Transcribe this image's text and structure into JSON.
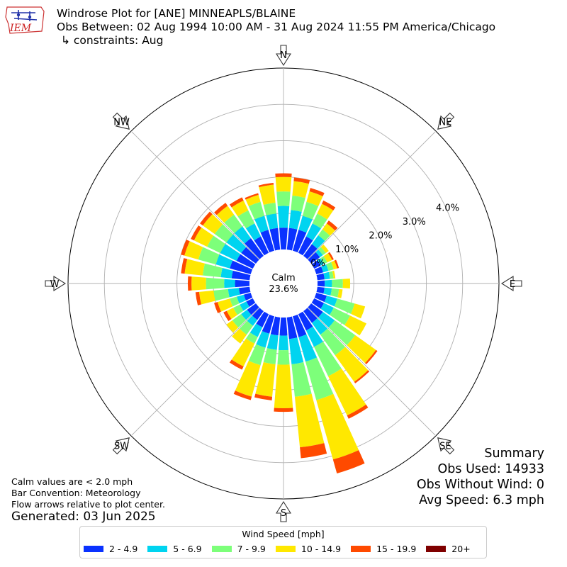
{
  "logo": {
    "text": "IEM",
    "color": "#cc2222"
  },
  "title": {
    "line1": "Windrose Plot for [ANE] MINNEAPLS/BLAINE",
    "line2": "Obs Between: 02 Aug 1994 10:00 AM - 31 Aug 2024 11:55 PM America/Chicago",
    "line3": "↳ constraints: Aug"
  },
  "footnotes": [
    "Calm values are < 2.0 mph",
    "Bar Convention: Meteorology",
    "Flow arrows relative to plot center."
  ],
  "generated": "Generated: 03 Jun 2025",
  "summary": {
    "heading": "Summary",
    "obs_used": "Obs Used: 14933",
    "obs_without_wind": "Obs Without Wind: 0",
    "avg_speed": "Avg Speed: 6.3 mph"
  },
  "chart_data": {
    "type": "windrose",
    "direction_labels": [
      "N",
      "NE",
      "E",
      "SE",
      "S",
      "SW",
      "W",
      "NW"
    ],
    "radial_ticks": [
      "0.0%",
      "1.0%",
      "2.0%",
      "3.0%",
      "4.0%"
    ],
    "radial_max_pct": 5.0,
    "calm_label": "Calm",
    "calm_value": "23.6%",
    "legend_title": "Wind Speed [mph]",
    "speed_bins": [
      {
        "label": "2 - 4.9",
        "color": "#0a32ff"
      },
      {
        "label": "5 - 6.9",
        "color": "#00d4f0"
      },
      {
        "label": "7 - 9.9",
        "color": "#7dff7a"
      },
      {
        "label": "10 - 14.9",
        "color": "#ffe800"
      },
      {
        "label": "15 - 19.9",
        "color": "#ff4a00"
      },
      {
        "label": "20+",
        "color": "#7f0000"
      }
    ],
    "directions_deg": [
      0,
      10,
      20,
      30,
      40,
      50,
      60,
      70,
      80,
      90,
      100,
      110,
      120,
      130,
      140,
      150,
      160,
      170,
      180,
      190,
      200,
      210,
      220,
      230,
      240,
      250,
      260,
      270,
      280,
      290,
      300,
      310,
      320,
      330,
      340,
      350
    ],
    "cumulative_pct": [
      [
        0.6,
        1.2,
        1.6,
        2.0,
        2.1,
        2.1
      ],
      [
        0.6,
        1.1,
        1.5,
        1.9,
        2.0,
        2.0
      ],
      [
        0.6,
        1.0,
        1.4,
        1.7,
        1.8,
        1.8
      ],
      [
        0.5,
        0.9,
        1.2,
        1.5,
        1.6,
        1.6
      ],
      [
        0.4,
        0.7,
        0.9,
        1.1,
        1.2,
        1.2
      ],
      [
        0.3,
        0.4,
        0.5,
        0.6,
        0.6,
        0.6
      ],
      [
        0.2,
        0.3,
        0.4,
        0.55,
        0.6,
        0.6
      ],
      [
        0.2,
        0.35,
        0.5,
        0.6,
        0.65,
        0.65
      ],
      [
        0.2,
        0.35,
        0.45,
        0.5,
        0.5,
        0.5
      ],
      [
        0.2,
        0.4,
        0.7,
        0.9,
        0.9,
        0.9
      ],
      [
        0.2,
        0.4,
        0.6,
        0.7,
        0.7,
        0.7
      ],
      [
        0.3,
        0.6,
        1.1,
        1.4,
        1.4,
        1.4
      ],
      [
        0.3,
        0.6,
        1.1,
        1.6,
        1.6,
        1.6
      ],
      [
        0.4,
        0.8,
        1.5,
        2.2,
        2.25,
        2.25
      ],
      [
        0.4,
        0.8,
        1.5,
        2.4,
        2.45,
        2.45
      ],
      [
        0.5,
        1.0,
        1.9,
        3.1,
        3.2,
        3.2
      ],
      [
        0.6,
        1.3,
        2.4,
        4.1,
        4.5,
        4.5
      ],
      [
        0.6,
        1.3,
        2.2,
        3.6,
        3.9,
        3.9
      ],
      [
        0.5,
        0.9,
        1.3,
        2.5,
        2.6,
        2.6
      ],
      [
        0.5,
        0.9,
        1.3,
        2.2,
        2.3,
        2.3
      ],
      [
        0.5,
        0.9,
        1.4,
        2.3,
        2.4,
        2.4
      ],
      [
        0.4,
        0.7,
        0.9,
        1.6,
        1.7,
        1.7
      ],
      [
        0.3,
        0.5,
        0.8,
        1.1,
        1.1,
        1.1
      ],
      [
        0.3,
        0.5,
        0.8,
        1.0,
        1.0,
        1.0
      ],
      [
        0.2,
        0.4,
        0.6,
        0.8,
        0.9,
        0.9
      ],
      [
        0.2,
        0.4,
        0.6,
        0.95,
        1.05,
        1.05
      ],
      [
        0.3,
        0.6,
        1.0,
        1.4,
        1.5,
        1.5
      ],
      [
        0.4,
        0.7,
        1.2,
        1.6,
        1.7,
        1.7
      ],
      [
        0.5,
        0.8,
        1.3,
        1.8,
        1.9,
        1.9
      ],
      [
        0.6,
        1.0,
        1.5,
        1.9,
        2.0,
        2.0
      ],
      [
        0.5,
        1.0,
        1.4,
        1.8,
        1.9,
        1.9
      ],
      [
        0.5,
        1.0,
        1.4,
        1.8,
        1.9,
        1.9
      ],
      [
        0.6,
        1.0,
        1.4,
        1.7,
        1.8,
        1.8
      ],
      [
        0.5,
        0.9,
        1.3,
        1.6,
        1.7,
        1.7
      ],
      [
        0.6,
        1.0,
        1.4,
        1.6,
        1.65,
        1.65
      ],
      [
        0.6,
        1.0,
        1.3,
        1.8,
        1.85,
        1.85
      ]
    ]
  }
}
